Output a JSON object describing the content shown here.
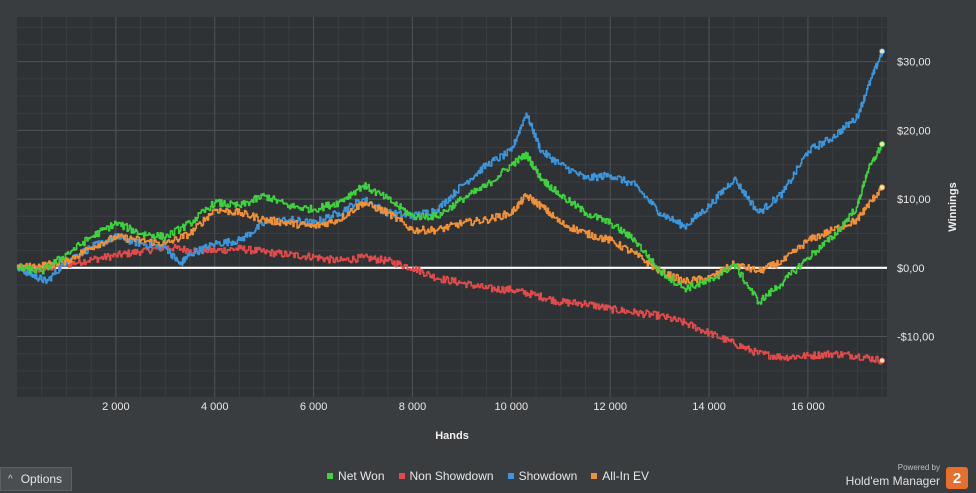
{
  "chart_data": {
    "type": "line",
    "xlabel": "Hands",
    "ylabel": "Winnings",
    "xlim": [
      0,
      17600
    ],
    "ylim": [
      -18.8,
      36.5
    ],
    "x_ticks": [
      2000,
      4000,
      6000,
      8000,
      10000,
      12000,
      14000,
      16000
    ],
    "x_tick_labels": [
      "2 000",
      "4 000",
      "6 000",
      "8 000",
      "10 000",
      "12 000",
      "14 000",
      "16 000"
    ],
    "y_ticks": [
      -10,
      0,
      10,
      20,
      30
    ],
    "y_tick_labels": [
      "-$10,00",
      "$0,00",
      "$10,00",
      "$20,00",
      "$30,00"
    ],
    "grid": true,
    "legend_position": "bottom-center",
    "series": [
      {
        "name": "Non Showdown",
        "color": "#e24b4b",
        "points": [
          [
            0,
            0
          ],
          [
            500,
            -0.2
          ],
          [
            1000,
            0.5
          ],
          [
            1500,
            1.2
          ],
          [
            2000,
            1.8
          ],
          [
            2500,
            2.4
          ],
          [
            3000,
            3.0
          ],
          [
            3500,
            2.6
          ],
          [
            4000,
            2.5
          ],
          [
            4500,
            2.8
          ],
          [
            5000,
            2.3
          ],
          [
            5500,
            1.9
          ],
          [
            6000,
            1.6
          ],
          [
            6500,
            1.0
          ],
          [
            7000,
            1.5
          ],
          [
            7500,
            1.0
          ],
          [
            8000,
            0.0
          ],
          [
            8500,
            -1.5
          ],
          [
            9000,
            -2.2
          ],
          [
            9500,
            -3.0
          ],
          [
            10000,
            -3.2
          ],
          [
            10500,
            -4.0
          ],
          [
            11000,
            -5.0
          ],
          [
            11500,
            -5.2
          ],
          [
            12000,
            -6.0
          ],
          [
            12500,
            -6.5
          ],
          [
            13000,
            -7.0
          ],
          [
            13500,
            -8.0
          ],
          [
            14000,
            -9.5
          ],
          [
            14500,
            -11.0
          ],
          [
            15000,
            -12.5
          ],
          [
            15500,
            -13.0
          ],
          [
            16000,
            -12.8
          ],
          [
            16500,
            -12.5
          ],
          [
            17000,
            -12.8
          ],
          [
            17500,
            -13.5
          ]
        ]
      },
      {
        "name": "Showdown",
        "color": "#3b96dd",
        "points": [
          [
            0,
            0
          ],
          [
            300,
            -1.0
          ],
          [
            600,
            -2.0
          ],
          [
            1000,
            1.0
          ],
          [
            1500,
            3.0
          ],
          [
            2000,
            4.5
          ],
          [
            2500,
            3.5
          ],
          [
            3000,
            3.0
          ],
          [
            3300,
            0.5
          ],
          [
            3500,
            2.0
          ],
          [
            4000,
            3.5
          ],
          [
            4500,
            4.0
          ],
          [
            5000,
            6.5
          ],
          [
            5500,
            7.0
          ],
          [
            6000,
            6.5
          ],
          [
            6500,
            8.0
          ],
          [
            7000,
            10.0
          ],
          [
            7500,
            8.0
          ],
          [
            8000,
            7.5
          ],
          [
            8500,
            8.5
          ],
          [
            9000,
            12.0
          ],
          [
            9500,
            15.0
          ],
          [
            10000,
            17.0
          ],
          [
            10300,
            22.5
          ],
          [
            10600,
            17.0
          ],
          [
            11000,
            15.0
          ],
          [
            11500,
            13.0
          ],
          [
            12000,
            13.5
          ],
          [
            12500,
            12.0
          ],
          [
            13000,
            8.0
          ],
          [
            13500,
            6.0
          ],
          [
            14000,
            9.0
          ],
          [
            14500,
            13.0
          ],
          [
            15000,
            8.0
          ],
          [
            15500,
            11.0
          ],
          [
            16000,
            17.0
          ],
          [
            16500,
            19.0
          ],
          [
            17000,
            22.0
          ],
          [
            17200,
            26.0
          ],
          [
            17500,
            31.5
          ]
        ]
      },
      {
        "name": "All-In EV",
        "color": "#f0913a",
        "points": [
          [
            0,
            0
          ],
          [
            500,
            0.3
          ],
          [
            1000,
            1.0
          ],
          [
            1500,
            3.0
          ],
          [
            2000,
            4.5
          ],
          [
            2500,
            4.0
          ],
          [
            3000,
            3.5
          ],
          [
            3500,
            5.0
          ],
          [
            4000,
            8.5
          ],
          [
            4500,
            8.0
          ],
          [
            5000,
            7.0
          ],
          [
            5500,
            6.5
          ],
          [
            6000,
            6.0
          ],
          [
            6500,
            7.0
          ],
          [
            7000,
            9.5
          ],
          [
            7500,
            8.0
          ],
          [
            8000,
            5.5
          ],
          [
            8500,
            5.5
          ],
          [
            9000,
            6.5
          ],
          [
            9500,
            7.0
          ],
          [
            10000,
            8.0
          ],
          [
            10300,
            10.5
          ],
          [
            10600,
            9.0
          ],
          [
            11000,
            6.5
          ],
          [
            11500,
            5.0
          ],
          [
            12000,
            4.0
          ],
          [
            12500,
            2.0
          ],
          [
            13000,
            -0.5
          ],
          [
            13500,
            -2.0
          ],
          [
            14000,
            -1.5
          ],
          [
            14500,
            0.5
          ],
          [
            15000,
            -0.5
          ],
          [
            15500,
            1.0
          ],
          [
            16000,
            4.0
          ],
          [
            16500,
            5.5
          ],
          [
            17000,
            7.0
          ],
          [
            17200,
            9.0
          ],
          [
            17500,
            11.7
          ]
        ]
      },
      {
        "name": "Net Won",
        "color": "#3fd23f",
        "points": [
          [
            0,
            0
          ],
          [
            500,
            -0.5
          ],
          [
            1000,
            2.0
          ],
          [
            1500,
            4.5
          ],
          [
            2000,
            6.5
          ],
          [
            2500,
            5.0
          ],
          [
            3000,
            4.5
          ],
          [
            3500,
            6.5
          ],
          [
            4000,
            9.5
          ],
          [
            4500,
            9.0
          ],
          [
            5000,
            10.5
          ],
          [
            5500,
            9.0
          ],
          [
            6000,
            8.5
          ],
          [
            6500,
            9.5
          ],
          [
            7000,
            12.0
          ],
          [
            7500,
            10.0
          ],
          [
            8000,
            7.5
          ],
          [
            8500,
            7.5
          ],
          [
            9000,
            10.0
          ],
          [
            9500,
            12.0
          ],
          [
            10000,
            15.0
          ],
          [
            10300,
            16.5
          ],
          [
            10600,
            13.0
          ],
          [
            11000,
            10.5
          ],
          [
            11500,
            8.0
          ],
          [
            12000,
            6.5
          ],
          [
            12500,
            4.0
          ],
          [
            13000,
            -0.5
          ],
          [
            13500,
            -3.0
          ],
          [
            14000,
            -2.0
          ],
          [
            14500,
            0.5
          ],
          [
            15000,
            -5.0
          ],
          [
            15500,
            -2.0
          ],
          [
            16000,
            1.5
          ],
          [
            16500,
            4.5
          ],
          [
            17000,
            9.0
          ],
          [
            17200,
            14.0
          ],
          [
            17500,
            18.0
          ]
        ]
      }
    ]
  },
  "legend": {
    "items": [
      {
        "label": "Net Won",
        "color": "#3fd23f"
      },
      {
        "label": "Non Showdown",
        "color": "#e24b4b"
      },
      {
        "label": "Showdown",
        "color": "#3b96dd"
      },
      {
        "label": "All-In EV",
        "color": "#f0913a"
      }
    ]
  },
  "options": {
    "label": "Options"
  },
  "branding": {
    "powered_by": "Powered by",
    "product": "Hold'em Manager",
    "logo_text": "2",
    "logo_color": "#e56f2b"
  }
}
